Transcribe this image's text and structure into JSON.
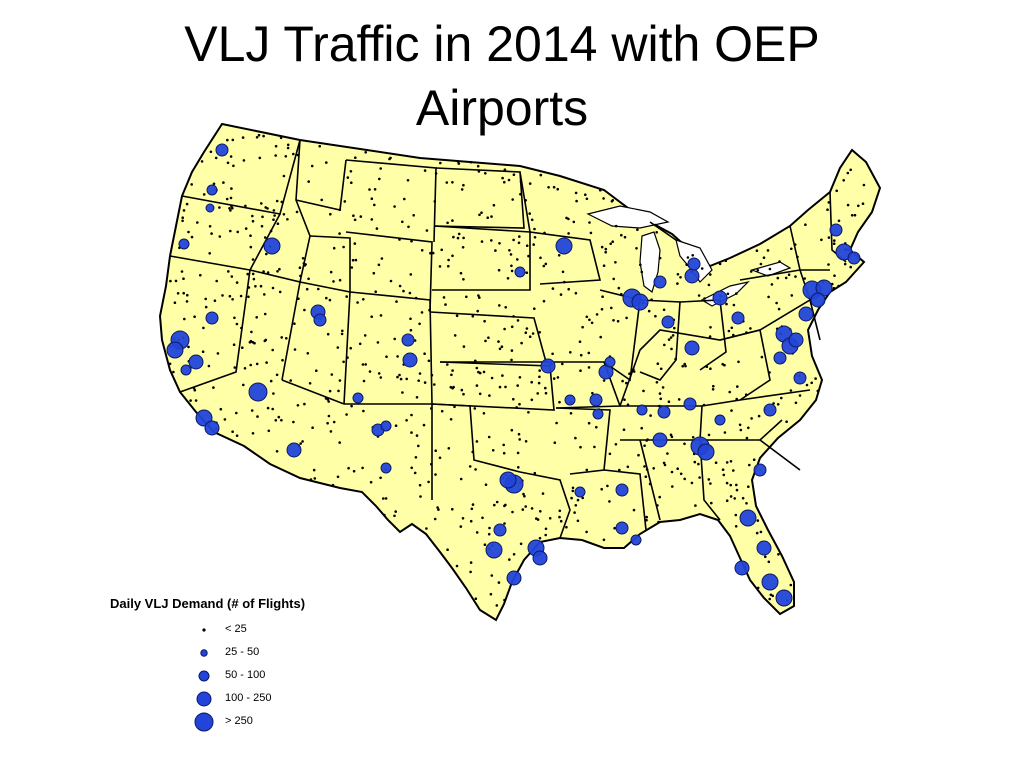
{
  "title": {
    "line1": "VLJ Traffic in 2014 with OEP",
    "line2": "Airports"
  },
  "colors": {
    "land": "#ffffa8",
    "border": "#000000",
    "marker": "#2244d8",
    "markerStroke": "#0b1a66",
    "dot": "#000000"
  },
  "legend": {
    "title": "Daily VLJ Demand (# of Flights)",
    "items": [
      {
        "label": "< 25",
        "symbol": "small-black-dot"
      },
      {
        "label": "25 - 50",
        "symbol": "blue-circle-small"
      },
      {
        "label": "50 - 100",
        "symbol": "blue-circle-medium"
      },
      {
        "label": "100 - 250",
        "symbol": "blue-circle-large"
      },
      {
        "label": "> 250",
        "symbol": "blue-circle-xlarge"
      }
    ]
  }
}
